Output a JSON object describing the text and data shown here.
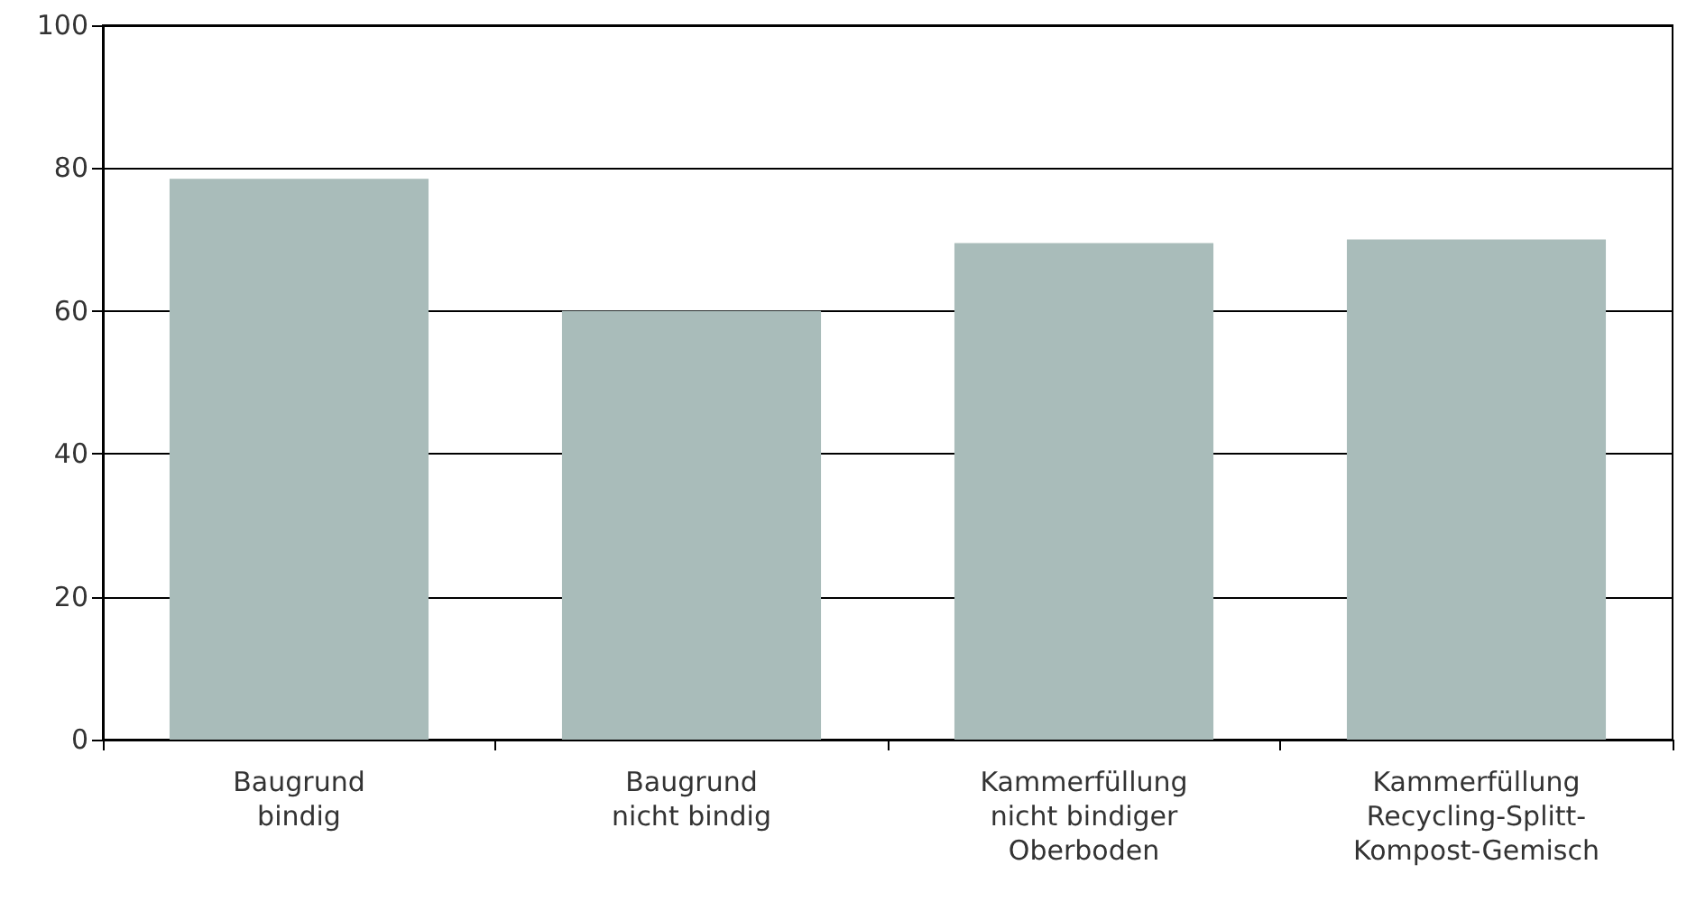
{
  "chart_data": {
    "type": "bar",
    "categories": [
      "Baugrund\nbindig",
      "Baugrund\nnicht bindig",
      "Kammerfüllung\nnicht bindiger\nOberboden",
      "Kammerfüllung\nRecycling-Splitt-\nKompost-Gemisch"
    ],
    "values": [
      78.5,
      60,
      69.5,
      70
    ],
    "color": "#a9bcba",
    "ylim": [
      0,
      100
    ],
    "yticks": [
      0,
      20,
      40,
      60,
      80,
      100
    ],
    "grid": "y"
  }
}
